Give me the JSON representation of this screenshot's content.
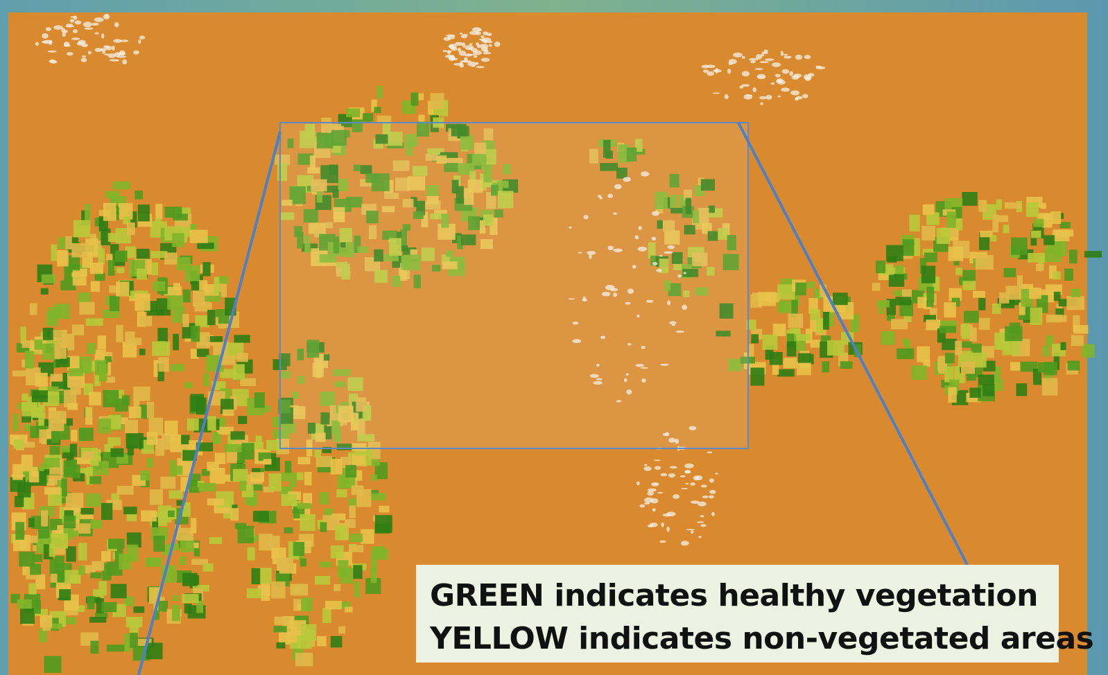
{
  "caption": {
    "lines": [
      "GREEN indicates healthy vegetation",
      "YELLOW indicates non-vegetated areas"
    ]
  }
}
